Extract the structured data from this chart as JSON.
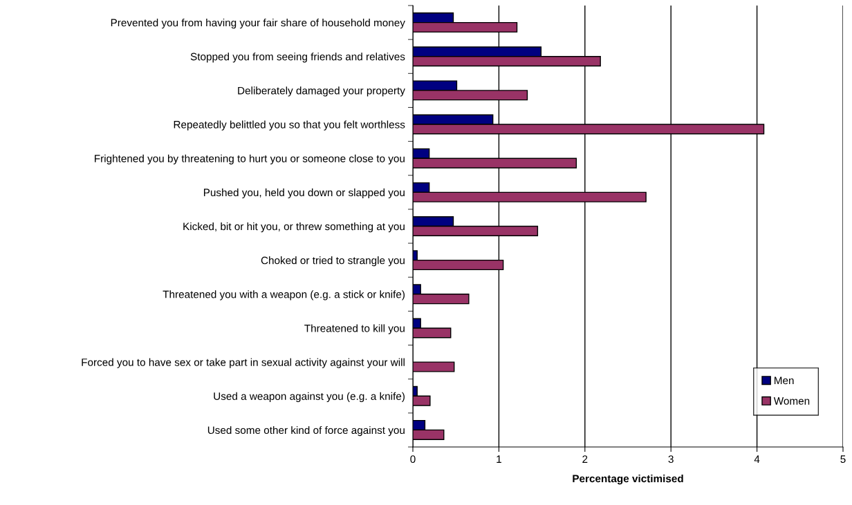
{
  "chart_data": {
    "type": "bar",
    "orientation": "horizontal",
    "xlabel": "Percentage victimised",
    "categories": [
      "Prevented you from having your fair share of household money",
      "Stopped you from seeing friends and relatives",
      "Deliberately damaged your property",
      "Repeatedly belittled you so that you felt worthless",
      "Frightened you by threatening to hurt you or someone close to you",
      "Pushed you, held you down or slapped you",
      "Kicked, bit or hit you, or threw something at you",
      "Choked or tried to strangle you",
      "Threatened you with a weapon (e.g. a stick or knife)",
      "Threatened to kill you",
      "Forced you to have sex or take part in sexual activity against your will",
      "Used a weapon against you (e.g. a knife)",
      "Used some other kind of force against you"
    ],
    "series": [
      {
        "name": "Men",
        "color": "#000080",
        "values": [
          0.47,
          1.49,
          0.51,
          0.93,
          0.19,
          0.19,
          0.47,
          0.05,
          0.09,
          0.09,
          null,
          0.05,
          0.14
        ]
      },
      {
        "name": "Women",
        "color": "#993366",
        "values": [
          1.21,
          2.18,
          1.33,
          4.08,
          1.9,
          2.71,
          1.45,
          1.05,
          0.65,
          0.44,
          0.48,
          0.2,
          0.36
        ]
      }
    ],
    "xlim": [
      0,
      5
    ],
    "xticks": [
      0,
      1,
      2,
      3,
      4,
      5
    ],
    "grid": "x",
    "legend": "bottom right"
  }
}
